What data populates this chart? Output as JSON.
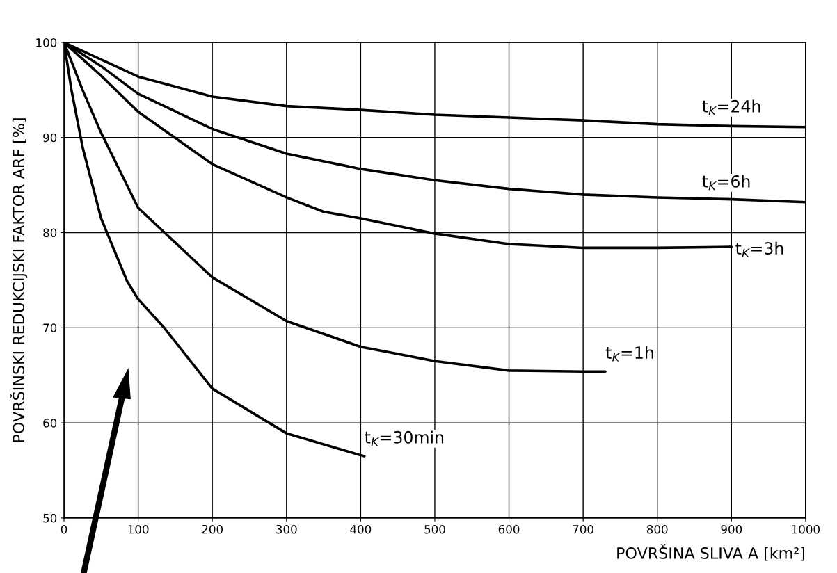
{
  "chart_data": {
    "type": "line",
    "xlabel": "POVRŠINA SLIVA A [km²]",
    "ylabel": "POVRŠINSKI REDUKCIJSKI FAKTOR ARF [%]",
    "xlim": [
      0,
      1000
    ],
    "ylim": [
      50,
      100
    ],
    "xticks": [
      0,
      100,
      200,
      300,
      400,
      500,
      600,
      700,
      800,
      900,
      1000
    ],
    "yticks": [
      50,
      60,
      70,
      80,
      90,
      100
    ],
    "grid": true,
    "series": [
      {
        "name": "t$_{K}$=24h",
        "color": "#000000",
        "x": [
          0,
          50,
          100,
          200,
          300,
          400,
          500,
          600,
          700,
          800,
          900,
          1000
        ],
        "values": [
          100,
          98.2,
          96.4,
          94.3,
          93.3,
          92.9,
          92.4,
          92.1,
          91.8,
          91.4,
          91.2,
          91.1
        ]
      },
      {
        "name": "t$_{K}$=6h",
        "color": "#000000",
        "x": [
          0,
          50,
          100,
          200,
          300,
          400,
          500,
          600,
          700,
          800,
          900,
          1000
        ],
        "values": [
          100,
          97.5,
          94.6,
          90.9,
          88.3,
          86.7,
          85.5,
          84.6,
          84.0,
          83.7,
          83.5,
          83.2
        ]
      },
      {
        "name": "t$_{K}$=3h",
        "color": "#000000",
        "x": [
          0,
          50,
          100,
          200,
          300,
          350,
          400,
          500,
          600,
          700,
          800,
          900
        ],
        "values": [
          100,
          96.5,
          92.7,
          87.2,
          83.7,
          82.2,
          81.5,
          79.9,
          78.8,
          78.4,
          78.4,
          78.5
        ]
      },
      {
        "name": "t$_{K}$=1h",
        "color": "#000000",
        "x": [
          0,
          25,
          50,
          100,
          200,
          300,
          400,
          500,
          600,
          700,
          730
        ],
        "values": [
          100,
          95,
          90.5,
          82.6,
          75.3,
          70.7,
          68.0,
          66.5,
          65.5,
          65.4,
          65.4
        ]
      },
      {
        "name": "t$_{K}$=30min",
        "color": "#000000",
        "x": [
          0,
          10,
          25,
          50,
          85,
          100,
          135,
          200,
          300,
          400,
          405
        ],
        "values": [
          100,
          95,
          89,
          81.5,
          74.9,
          73,
          70,
          63.6,
          58.9,
          56.6,
          56.5
        ]
      }
    ]
  }
}
